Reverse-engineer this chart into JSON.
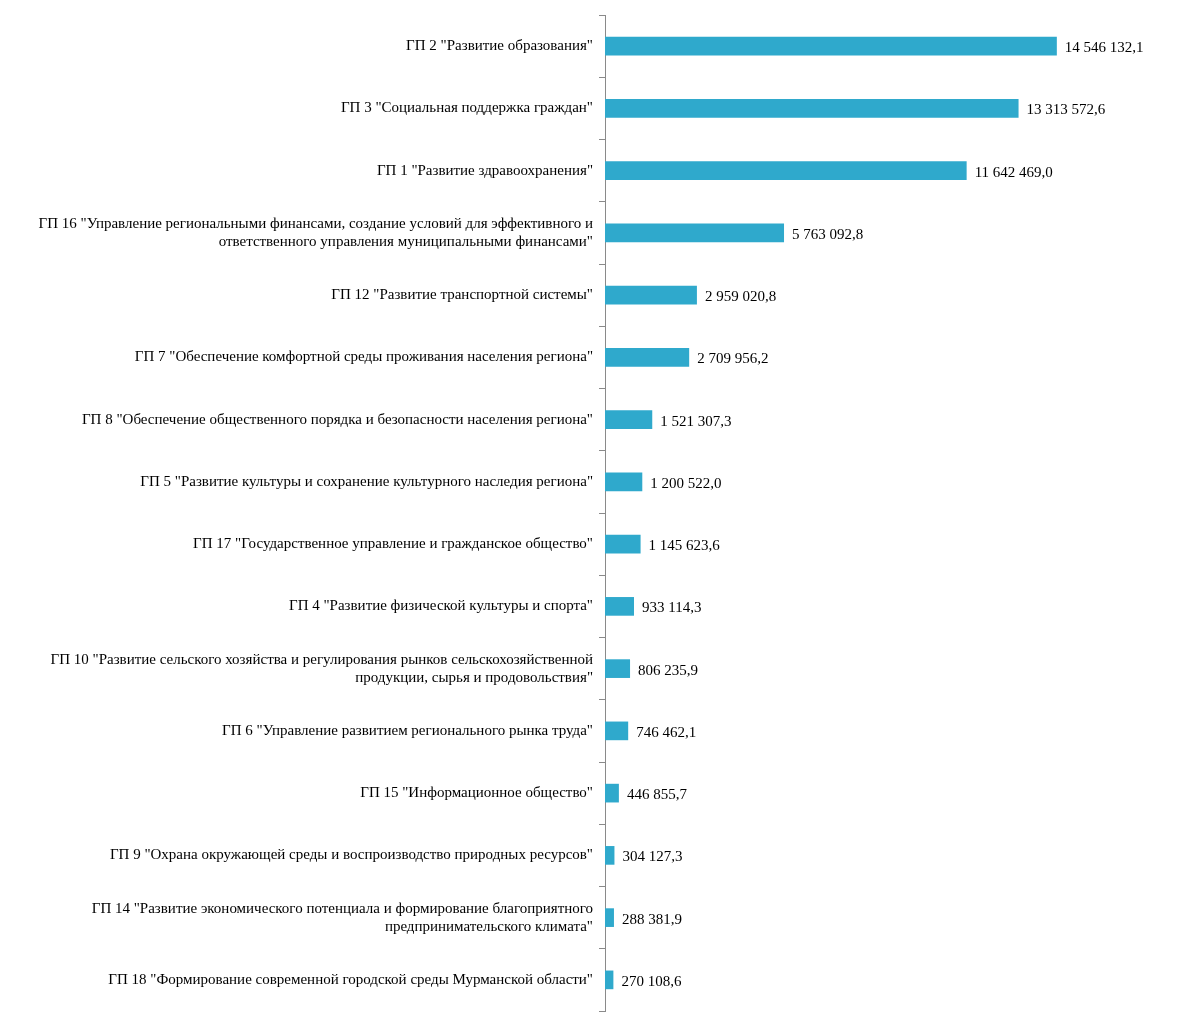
{
  "chart_data": {
    "type": "bar",
    "orientation": "horizontal",
    "grid": false,
    "legend": false,
    "categories": [
      "ГП 2 \"Развитие образования\"",
      "ГП 3 \"Социальная поддержка граждан\"",
      "ГП 1 \"Развитие здравоохранения\"",
      "ГП 16 \"Управление региональными финансами, создание условий для эффективного и ответственного управления муниципальными финансами\"",
      "ГП 12 \"Развитие транспортной системы\"",
      "ГП 7 \"Обеспечение комфортной среды проживания населения региона\"",
      "ГП 8 \"Обеспечение общественного порядка и безопасности населения региона\"",
      "ГП 5 \"Развитие культуры и сохранение культурного наследия региона\"",
      "ГП 17 \"Государственное управление и гражданское общество\"",
      "ГП 4 \"Развитие физической культуры и спорта\"",
      "ГП 10 \"Развитие сельского хозяйства и регулирования рынков сельскохозяйственной продукции, сырья и продовольствия\"",
      "ГП 6 \"Управление развитием регионального рынка труда\"",
      "ГП 15 \"Информационное общество\"",
      "ГП 9 \"Охрана окружающей среды и воспроизводство природных ресурсов\"",
      "ГП 14 \"Развитие экономического потенциала и формирование благоприятного предпринимательского климата\"",
      "ГП 18 \"Формирование современной городской среды Мурманской области\""
    ],
    "values": [
      14546132.1,
      13313572.6,
      11642469.0,
      5763092.8,
      2959020.8,
      2709956.2,
      1521307.3,
      1200522.0,
      1145623.6,
      933114.3,
      806235.9,
      746462.1,
      446855.7,
      304127.3,
      288381.9,
      270108.6
    ],
    "value_labels": [
      "14 546 132,1",
      "13 313 572,6",
      "11 642 469,0",
      "5 763 092,8",
      "2 959 020,8",
      "2 709 956,2",
      "1 521 307,3",
      "1 200 522,0",
      "1 145 623,6",
      "933 114,3",
      "806 235,9",
      "746 462,1",
      "446 855,7",
      "304 127,3",
      "288 381,9",
      "270 108,6"
    ],
    "color": "#2fa9cc"
  }
}
